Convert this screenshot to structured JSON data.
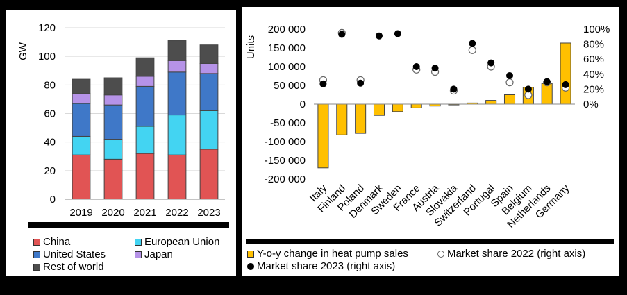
{
  "chart_data": [
    {
      "type": "bar",
      "stacked": true,
      "ylabel": "GW",
      "ylim": [
        0,
        120
      ],
      "yticks": [
        0,
        20,
        40,
        60,
        80,
        100,
        120
      ],
      "categories": [
        "2019",
        "2020",
        "2021",
        "2022",
        "2023"
      ],
      "series": [
        {
          "name": "China",
          "color": "#e15454",
          "values": [
            31,
            28,
            32,
            31,
            35
          ]
        },
        {
          "name": "European Union",
          "color": "#43d4f2",
          "values": [
            13,
            14,
            19,
            28,
            27
          ]
        },
        {
          "name": "United States",
          "color": "#3f78c8",
          "values": [
            23,
            24,
            28,
            30,
            26
          ]
        },
        {
          "name": "Japan",
          "color": "#b693e8",
          "values": [
            7,
            7,
            7,
            8,
            7
          ]
        },
        {
          "name": "Rest of world",
          "color": "#4d4d4d",
          "values": [
            10,
            12,
            13,
            14,
            13
          ]
        }
      ],
      "legend": [
        "China",
        "European Union",
        "United States",
        "Japan",
        "Rest of world"
      ]
    },
    {
      "type": "bar",
      "ylabel": "Units",
      "ylim": [
        -200000,
        200000
      ],
      "yticks": [
        "200 000",
        "150 000",
        "100 000",
        "50 000",
        "0",
        "-50 000",
        "-100 000",
        "-150 000",
        "-200 000"
      ],
      "y2ticks": [
        "100%",
        "80%",
        "60%",
        "40%",
        "20%",
        "0%"
      ],
      "y2lim": [
        0,
        1
      ],
      "categories": [
        "Italy",
        "Finland",
        "Poland",
        "Denmark",
        "Sweden",
        "France",
        "Austria",
        "Slovakia",
        "Switzerland",
        "Portugal",
        "Spain",
        "Belgium",
        "Netherlands",
        "Germany"
      ],
      "series": [
        {
          "name": "Y-o-y change in heat pump sales",
          "color": "#ffc000",
          "values": [
            -170000,
            -82000,
            -78000,
            -30000,
            -20000,
            -10000,
            -5000,
            -2000,
            3000,
            10000,
            25000,
            45000,
            55000,
            163000
          ]
        },
        {
          "name": "Market share 2022 (right axis)",
          "axis": "right",
          "values": [
            0.32,
            0.95,
            0.32,
            null,
            null,
            0.46,
            0.43,
            0.18,
            0.72,
            0.5,
            0.29,
            0.12,
            0.29,
            0.22
          ]
        },
        {
          "name": "Market share 2023 (right axis)",
          "axis": "right",
          "values": [
            0.27,
            0.93,
            0.28,
            0.91,
            0.94,
            0.5,
            0.48,
            0.2,
            0.81,
            0.55,
            0.38,
            0.2,
            0.3,
            0.26
          ]
        }
      ],
      "legend": [
        "Y-o-y change in heat pump sales",
        "Market share 2022 (right axis)",
        "Market share 2023 (right axis)"
      ]
    }
  ],
  "legend_left": {
    "china": "China",
    "eu": "European Union",
    "us": "United States",
    "japan": "Japan",
    "row": "Rest of world"
  },
  "legend_right": {
    "bars": "Y-o-y change in heat pump sales",
    "share2022": "Market share 2022 (right axis)",
    "share2023": "Market share 2023 (right axis)"
  }
}
